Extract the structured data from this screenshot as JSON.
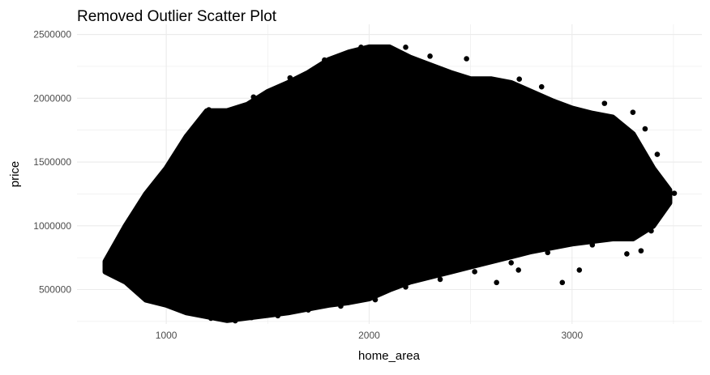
{
  "chart_data": {
    "type": "scatter",
    "title": "Removed Outlier Scatter Plot",
    "xlabel": "home_area",
    "ylabel": "price",
    "xlim": [
      560,
      3640
    ],
    "ylim": [
      230000,
      2580000
    ],
    "x_ticks": [
      1000,
      2000,
      3000
    ],
    "x_tick_labels": [
      "1000",
      "2000",
      "3000"
    ],
    "y_ticks": [
      500000,
      1000000,
      1500000,
      2000000,
      2500000
    ],
    "y_tick_labels": [
      "500000",
      "1000000",
      "1500000",
      "2000000",
      "2500000"
    ],
    "grid": true,
    "point_color": "#000000",
    "grid_color": "#ebebeb",
    "density_envelope": [
      {
        "x": 700,
        "y_min": 640000,
        "y_max": 720000
      },
      {
        "x": 800,
        "y_min": 560000,
        "y_max": 1000000
      },
      {
        "x": 900,
        "y_min": 420000,
        "y_max": 1250000
      },
      {
        "x": 1000,
        "y_min": 380000,
        "y_max": 1450000
      },
      {
        "x": 1100,
        "y_min": 320000,
        "y_max": 1700000
      },
      {
        "x": 1200,
        "y_min": 290000,
        "y_max": 1900000
      },
      {
        "x": 1300,
        "y_min": 260000,
        "y_max": 1900000
      },
      {
        "x": 1400,
        "y_min": 280000,
        "y_max": 1950000
      },
      {
        "x": 1500,
        "y_min": 300000,
        "y_max": 2050000
      },
      {
        "x": 1600,
        "y_min": 320000,
        "y_max": 2120000
      },
      {
        "x": 1700,
        "y_min": 350000,
        "y_max": 2200000
      },
      {
        "x": 1800,
        "y_min": 380000,
        "y_max": 2300000
      },
      {
        "x": 1900,
        "y_min": 400000,
        "y_max": 2360000
      },
      {
        "x": 2000,
        "y_min": 430000,
        "y_max": 2400000
      },
      {
        "x": 2100,
        "y_min": 500000,
        "y_max": 2400000
      },
      {
        "x": 2200,
        "y_min": 560000,
        "y_max": 2320000
      },
      {
        "x": 2300,
        "y_min": 600000,
        "y_max": 2260000
      },
      {
        "x": 2400,
        "y_min": 640000,
        "y_max": 2200000
      },
      {
        "x": 2500,
        "y_min": 680000,
        "y_max": 2150000
      },
      {
        "x": 2600,
        "y_min": 720000,
        "y_max": 2150000
      },
      {
        "x": 2700,
        "y_min": 760000,
        "y_max": 2120000
      },
      {
        "x": 2800,
        "y_min": 800000,
        "y_max": 2050000
      },
      {
        "x": 2900,
        "y_min": 830000,
        "y_max": 1980000
      },
      {
        "x": 3000,
        "y_min": 860000,
        "y_max": 1920000
      },
      {
        "x": 3100,
        "y_min": 880000,
        "y_max": 1880000
      },
      {
        "x": 3200,
        "y_min": 900000,
        "y_max": 1850000
      },
      {
        "x": 3300,
        "y_min": 900000,
        "y_max": 1720000
      },
      {
        "x": 3400,
        "y_min": 1000000,
        "y_max": 1450000
      },
      {
        "x": 3480,
        "y_min": 1180000,
        "y_max": 1280000
      }
    ],
    "points": [
      {
        "x": 2952,
        "y": 555000
      },
      {
        "x": 3036,
        "y": 653000
      },
      {
        "x": 2736,
        "y": 653000
      },
      {
        "x": 2628,
        "y": 555000
      },
      {
        "x": 3504,
        "y": 1255000
      },
      {
        "x": 3340,
        "y": 804000
      },
      {
        "x": 3270,
        "y": 780000
      },
      {
        "x": 3390,
        "y": 960000
      },
      {
        "x": 3440,
        "y": 1340000
      },
      {
        "x": 3420,
        "y": 1560000
      },
      {
        "x": 3360,
        "y": 1760000
      },
      {
        "x": 3300,
        "y": 1890000
      },
      {
        "x": 3160,
        "y": 1960000
      },
      {
        "x": 3000,
        "y": 1920000
      },
      {
        "x": 2850,
        "y": 2090000
      },
      {
        "x": 2740,
        "y": 2150000
      },
      {
        "x": 2480,
        "y": 2310000
      },
      {
        "x": 2300,
        "y": 2330000
      },
      {
        "x": 2180,
        "y": 2400000
      },
      {
        "x": 1960,
        "y": 2400000
      },
      {
        "x": 1780,
        "y": 2300000
      },
      {
        "x": 1610,
        "y": 2160000
      },
      {
        "x": 1430,
        "y": 2010000
      },
      {
        "x": 1300,
        "y": 1900000
      },
      {
        "x": 1210,
        "y": 1910000
      },
      {
        "x": 1120,
        "y": 1730000
      },
      {
        "x": 1020,
        "y": 1470000
      },
      {
        "x": 950,
        "y": 1260000
      },
      {
        "x": 870,
        "y": 1050000
      },
      {
        "x": 790,
        "y": 960000
      },
      {
        "x": 700,
        "y": 690000
      },
      {
        "x": 720,
        "y": 640000
      },
      {
        "x": 880,
        "y": 450000
      },
      {
        "x": 1000,
        "y": 390000
      },
      {
        "x": 1110,
        "y": 330000
      },
      {
        "x": 1220,
        "y": 275000
      },
      {
        "x": 1340,
        "y": 255000
      },
      {
        "x": 1420,
        "y": 280000
      },
      {
        "x": 1550,
        "y": 295000
      },
      {
        "x": 1700,
        "y": 340000
      },
      {
        "x": 1860,
        "y": 370000
      },
      {
        "x": 2030,
        "y": 420000
      },
      {
        "x": 2180,
        "y": 520000
      },
      {
        "x": 2350,
        "y": 580000
      },
      {
        "x": 2520,
        "y": 640000
      },
      {
        "x": 2700,
        "y": 710000
      },
      {
        "x": 2880,
        "y": 790000
      },
      {
        "x": 3100,
        "y": 850000
      }
    ]
  }
}
